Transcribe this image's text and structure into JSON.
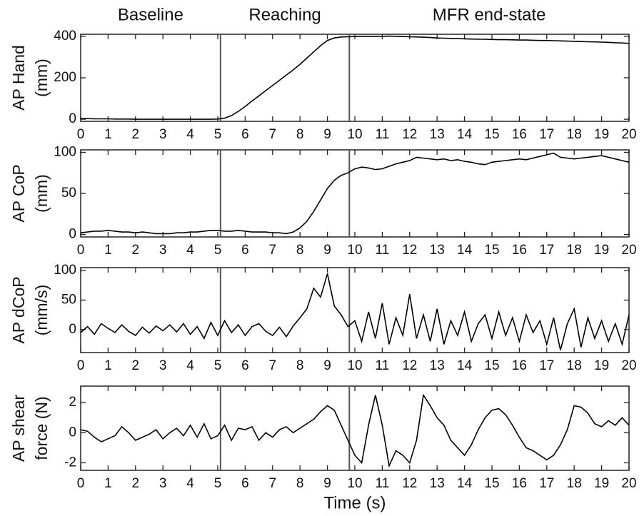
{
  "chart_data": [
    {
      "type": "line",
      "color": "#000000",
      "annotations": [
        "Baseline",
        "Reaching",
        "MFR end-state"
      ],
      "ylabel": [
        "AP Hand",
        "(mm)"
      ],
      "vlines": [
        5.1,
        9.8
      ],
      "xlim": [
        0,
        20
      ],
      "xticks": [
        0,
        1,
        2,
        3,
        4,
        5,
        6,
        7,
        8,
        9,
        10,
        11,
        12,
        13,
        14,
        15,
        16,
        17,
        18,
        19,
        20
      ],
      "ylim": [
        -10,
        410
      ],
      "yticks": [
        0,
        200,
        400
      ],
      "x": [
        0,
        0.25,
        0.5,
        0.75,
        1,
        1.25,
        1.5,
        1.75,
        2,
        2.25,
        2.5,
        2.75,
        3,
        3.25,
        3.5,
        3.75,
        4,
        4.25,
        4.5,
        4.75,
        5,
        5.25,
        5.5,
        5.75,
        6,
        6.25,
        6.5,
        6.75,
        7,
        7.25,
        7.5,
        7.75,
        8,
        8.25,
        8.5,
        8.75,
        9,
        9.25,
        9.5,
        9.75,
        10,
        10.25,
        10.5,
        10.75,
        11,
        11.25,
        11.5,
        11.75,
        12,
        12.25,
        12.5,
        12.75,
        13,
        13.25,
        13.5,
        13.75,
        14,
        14.25,
        14.5,
        14.75,
        15,
        15.25,
        15.5,
        15.75,
        16,
        16.25,
        16.5,
        16.75,
        17,
        17.25,
        17.5,
        17.75,
        18,
        18.25,
        18.5,
        18.75,
        19,
        19.25,
        19.5,
        19.75,
        20
      ],
      "values": [
        3,
        3,
        2,
        2,
        2,
        1,
        1,
        1,
        0,
        0,
        0,
        0,
        0,
        0,
        0,
        0,
        0,
        0,
        0,
        0,
        1,
        5,
        18,
        38,
        62,
        88,
        113,
        138,
        163,
        188,
        213,
        238,
        265,
        295,
        325,
        355,
        380,
        392,
        397,
        398,
        399,
        400,
        400,
        400,
        400,
        401,
        400,
        399,
        398,
        397,
        396,
        394,
        392,
        391,
        390,
        389,
        388,
        387,
        386,
        386,
        385,
        384,
        384,
        383,
        382,
        382,
        381,
        380,
        380,
        379,
        378,
        377,
        376,
        375,
        374,
        373,
        372,
        371,
        369,
        368,
        366
      ]
    },
    {
      "type": "line",
      "color": "#000000",
      "ylabel": [
        "AP CoP",
        "(mm)"
      ],
      "vlines": [
        5.1,
        9.8
      ],
      "xlim": [
        0,
        20
      ],
      "xticks": [
        0,
        1,
        2,
        3,
        4,
        5,
        6,
        7,
        8,
        9,
        10,
        11,
        12,
        13,
        14,
        15,
        16,
        17,
        18,
        19,
        20
      ],
      "ylim": [
        -3,
        103
      ],
      "yticks": [
        0,
        50,
        100
      ],
      "x": [
        0,
        0.25,
        0.5,
        0.75,
        1,
        1.25,
        1.5,
        1.75,
        2,
        2.25,
        2.5,
        2.75,
        3,
        3.25,
        3.5,
        3.75,
        4,
        4.25,
        4.5,
        4.75,
        5,
        5.25,
        5.5,
        5.75,
        6,
        6.25,
        6.5,
        6.75,
        7,
        7.25,
        7.5,
        7.75,
        8,
        8.25,
        8.5,
        8.75,
        9,
        9.25,
        9.5,
        9.75,
        10,
        10.25,
        10.5,
        10.75,
        11,
        11.25,
        11.5,
        11.75,
        12,
        12.25,
        12.5,
        12.75,
        13,
        13.25,
        13.5,
        13.75,
        14,
        14.25,
        14.5,
        14.75,
        15,
        15.25,
        15.5,
        15.75,
        16,
        16.25,
        16.5,
        16.75,
        17,
        17.25,
        17.5,
        17.75,
        18,
        18.25,
        18.5,
        18.75,
        19,
        19.25,
        19.5,
        19.75,
        20
      ],
      "values": [
        2,
        3,
        4,
        4,
        5,
        4,
        3,
        3,
        2,
        3,
        2,
        1,
        1,
        1,
        2,
        2,
        3,
        3,
        4,
        5,
        5,
        4,
        4,
        5,
        4,
        3,
        3,
        3,
        2,
        2,
        1,
        3,
        8,
        16,
        28,
        42,
        56,
        66,
        72,
        75,
        80,
        82,
        81,
        79,
        80,
        83,
        86,
        88,
        90,
        94,
        93,
        92,
        91,
        92,
        90,
        91,
        89,
        88,
        86,
        85,
        88,
        89,
        90,
        91,
        92,
        91,
        93,
        95,
        97,
        99,
        94,
        93,
        92,
        93,
        94,
        95,
        96,
        94,
        92,
        90,
        88
      ]
    },
    {
      "type": "line",
      "color": "#000000",
      "ylabel": [
        "AP dCoP",
        "(mm/s)"
      ],
      "vlines": [
        5.1,
        9.8
      ],
      "xlim": [
        0,
        20
      ],
      "xticks": [
        0,
        1,
        2,
        3,
        4,
        5,
        6,
        7,
        8,
        9,
        10,
        11,
        12,
        13,
        14,
        15,
        16,
        17,
        18,
        19,
        20
      ],
      "ylim": [
        -39,
        105
      ],
      "yticks": [
        0,
        50,
        100
      ],
      "x": [
        0,
        0.25,
        0.5,
        0.75,
        1,
        1.25,
        1.5,
        1.75,
        2,
        2.25,
        2.5,
        2.75,
        3,
        3.25,
        3.5,
        3.75,
        4,
        4.25,
        4.5,
        4.75,
        5,
        5.25,
        5.5,
        5.75,
        6,
        6.25,
        6.5,
        6.75,
        7,
        7.25,
        7.5,
        7.75,
        8,
        8.25,
        8.5,
        8.75,
        9,
        9.25,
        9.5,
        9.75,
        10,
        10.25,
        10.5,
        10.75,
        11,
        11.25,
        11.5,
        11.75,
        12,
        12.25,
        12.5,
        12.75,
        13,
        13.25,
        13.5,
        13.75,
        14,
        14.25,
        14.5,
        14.75,
        15,
        15.25,
        15.5,
        15.75,
        16,
        16.25,
        16.5,
        16.75,
        17,
        17.25,
        17.5,
        17.75,
        18,
        18.25,
        18.5,
        18.75,
        19,
        19.25,
        19.5,
        19.75,
        20
      ],
      "values": [
        -5,
        5,
        -8,
        10,
        2,
        -5,
        8,
        -3,
        -10,
        4,
        -6,
        6,
        -2,
        8,
        -4,
        10,
        -8,
        5,
        -15,
        12,
        -10,
        15,
        -5,
        8,
        -10,
        5,
        10,
        -3,
        -10,
        4,
        -12,
        6,
        20,
        35,
        70,
        55,
        95,
        40,
        25,
        5,
        15,
        -20,
        30,
        -15,
        45,
        -25,
        20,
        -10,
        60,
        -15,
        25,
        -20,
        35,
        -25,
        15,
        -10,
        30,
        -20,
        10,
        25,
        -15,
        30,
        -10,
        20,
        -20,
        25,
        -5,
        15,
        -25,
        20,
        -35,
        10,
        35,
        -30,
        20,
        -15,
        15,
        -20,
        10,
        -25,
        25
      ]
    },
    {
      "type": "line",
      "color": "#000000",
      "ylabel": [
        "AP shear",
        "force (N)"
      ],
      "xlabel": "Time (s)",
      "vlines": [
        5.1,
        9.8
      ],
      "xlim": [
        0,
        20
      ],
      "xticks": [
        0,
        1,
        2,
        3,
        4,
        5,
        6,
        7,
        8,
        9,
        10,
        11,
        12,
        13,
        14,
        15,
        16,
        17,
        18,
        19,
        20
      ],
      "ylim": [
        -2.5,
        3.1
      ],
      "yticks": [
        -2,
        0,
        2
      ],
      "x": [
        0,
        0.25,
        0.5,
        0.75,
        1,
        1.25,
        1.5,
        1.75,
        2,
        2.25,
        2.5,
        2.75,
        3,
        3.25,
        3.5,
        3.75,
        4,
        4.25,
        4.5,
        4.75,
        5,
        5.25,
        5.5,
        5.75,
        6,
        6.25,
        6.5,
        6.75,
        7,
        7.25,
        7.5,
        7.75,
        8,
        8.25,
        8.5,
        8.75,
        9,
        9.25,
        9.5,
        9.75,
        10,
        10.25,
        10.5,
        10.75,
        11,
        11.25,
        11.5,
        11.75,
        12,
        12.25,
        12.5,
        12.75,
        13,
        13.25,
        13.5,
        13.75,
        14,
        14.25,
        14.5,
        14.75,
        15,
        15.25,
        15.5,
        15.75,
        16,
        16.25,
        16.5,
        16.75,
        17,
        17.25,
        17.5,
        17.75,
        18,
        18.25,
        18.5,
        18.75,
        19,
        19.25,
        19.5,
        19.75,
        20
      ],
      "values": [
        0.2,
        0.1,
        -0.3,
        -0.6,
        -0.4,
        -0.2,
        0.4,
        0,
        -0.5,
        -0.3,
        -0.1,
        0.2,
        -0.4,
        0,
        0.3,
        -0.2,
        0.5,
        -0.3,
        0.6,
        -0.4,
        -0.2,
        0.5,
        -0.5,
        0.3,
        0.2,
        0.4,
        -0.5,
        0,
        -0.3,
        0.2,
        0.4,
        0,
        0.3,
        0.6,
        0.9,
        1.4,
        1.8,
        1.5,
        0.5,
        -0.5,
        -1.5,
        -2,
        0.5,
        2.5,
        0.5,
        -2.2,
        -1.2,
        -1.5,
        -2,
        -0.5,
        2.5,
        1.8,
        1,
        0.5,
        -0.5,
        -1,
        -1.5,
        -0.8,
        0.2,
        1,
        1.5,
        1.6,
        1.2,
        0.5,
        -0.3,
        -1,
        -1.2,
        -1.5,
        -1.8,
        -1.5,
        -0.8,
        0.2,
        1.8,
        1.7,
        1.3,
        0.6,
        0.4,
        0.8,
        0.5,
        1,
        0.5
      ]
    }
  ]
}
